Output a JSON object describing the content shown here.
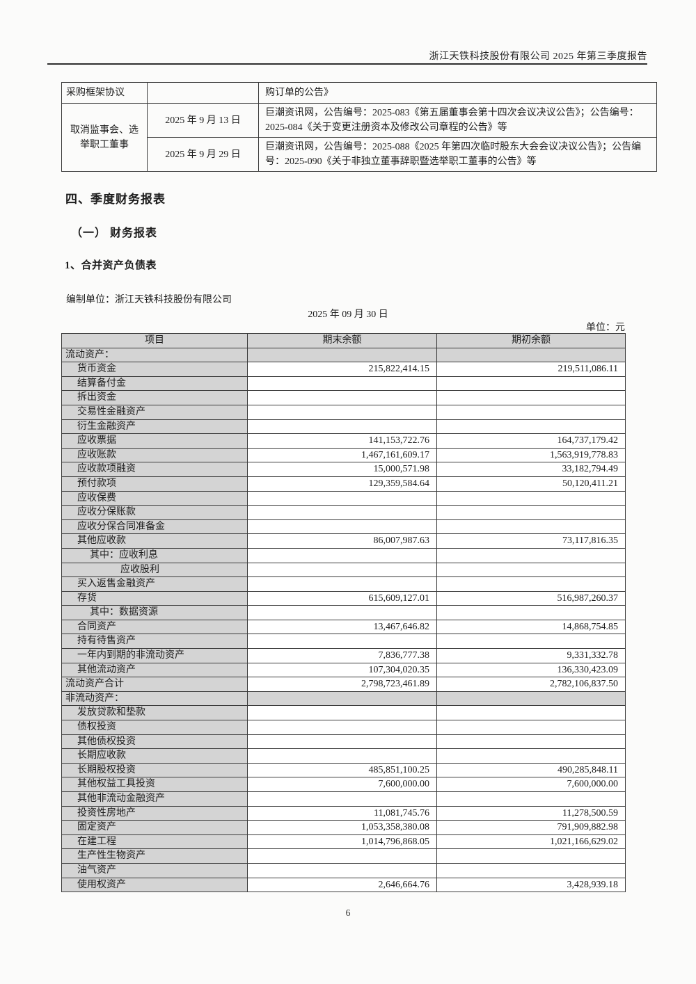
{
  "page": {
    "header_title": "浙江天铁科技股份有限公司 2025 年第三季度报告",
    "footer_page_number": "6"
  },
  "announcements_table": {
    "row_continued": {
      "col1": "采购框架协议",
      "col2": "",
      "col3": "购订单的公告》"
    },
    "merged_label": "取消监事会、选举职工董事",
    "entries": [
      {
        "date": "2025 年 9 月 13 日",
        "detail": "巨潮资讯网，公告编号：2025-083《第五届董事会第十四次会议决议公告》；公告编号：2025-084《关于变更注册资本及修改公司章程的公告》等"
      },
      {
        "date": "2025 年 9 月 29 日",
        "detail": "巨潮资讯网，公告编号：2025-088《2025 年第四次临时股东大会会议决议公告》；公告编号：2025-090《关于非独立董事辞职暨选举职工董事的公告》等"
      }
    ]
  },
  "sections": {
    "h1": "四、季度财务报表",
    "h2": "（一） 财务报表",
    "h3": "1、合并资产负债表",
    "prepared_by": "编制单位：浙江天铁科技股份有限公司",
    "report_date": "2025 年 09 月 30 日",
    "unit_label": "单位：元"
  },
  "balance_sheet": {
    "headers": [
      "项目",
      "期末余额",
      "期初余额"
    ],
    "colors": {
      "shaded_cell": "#d4d4d4",
      "border": "#3a3a3a"
    },
    "rows": [
      {
        "item": "流动资产：",
        "end": "",
        "begin": "",
        "type": "section",
        "indent": 0
      },
      {
        "item": "货币资金",
        "end": "215,822,414.15",
        "begin": "219,511,086.11",
        "type": "item",
        "indent": 1
      },
      {
        "item": "结算备付金",
        "end": "",
        "begin": "",
        "type": "item",
        "indent": 1
      },
      {
        "item": "拆出资金",
        "end": "",
        "begin": "",
        "type": "item",
        "indent": 1
      },
      {
        "item": "交易性金融资产",
        "end": "",
        "begin": "",
        "type": "item",
        "indent": 1
      },
      {
        "item": "衍生金融资产",
        "end": "",
        "begin": "",
        "type": "item",
        "indent": 1
      },
      {
        "item": "应收票据",
        "end": "141,153,722.76",
        "begin": "164,737,179.42",
        "type": "item",
        "indent": 1
      },
      {
        "item": "应收账款",
        "end": "1,467,161,609.17",
        "begin": "1,563,919,778.83",
        "type": "item",
        "indent": 1
      },
      {
        "item": "应收款项融资",
        "end": "15,000,571.98",
        "begin": "33,182,794.49",
        "type": "item",
        "indent": 1
      },
      {
        "item": "预付款项",
        "end": "129,359,584.64",
        "begin": "50,120,411.21",
        "type": "item",
        "indent": 1
      },
      {
        "item": "应收保费",
        "end": "",
        "begin": "",
        "type": "item",
        "indent": 1
      },
      {
        "item": "应收分保账款",
        "end": "",
        "begin": "",
        "type": "item",
        "indent": 1
      },
      {
        "item": "应收分保合同准备金",
        "end": "",
        "begin": "",
        "type": "item",
        "indent": 1
      },
      {
        "item": "其他应收款",
        "end": "86,007,987.63",
        "begin": "73,117,816.35",
        "type": "item",
        "indent": 1
      },
      {
        "item": "其中：应收利息",
        "end": "",
        "begin": "",
        "type": "item",
        "indent": 2
      },
      {
        "item": "应收股利",
        "end": "",
        "begin": "",
        "type": "item",
        "indent": 3
      },
      {
        "item": "买入返售金融资产",
        "end": "",
        "begin": "",
        "type": "item",
        "indent": 1
      },
      {
        "item": "存货",
        "end": "615,609,127.01",
        "begin": "516,987,260.37",
        "type": "item",
        "indent": 1
      },
      {
        "item": "其中：数据资源",
        "end": "",
        "begin": "",
        "type": "item",
        "indent": 2
      },
      {
        "item": "合同资产",
        "end": "13,467,646.82",
        "begin": "14,868,754.85",
        "type": "item",
        "indent": 1
      },
      {
        "item": "持有待售资产",
        "end": "",
        "begin": "",
        "type": "item",
        "indent": 1
      },
      {
        "item": "一年内到期的非流动资产",
        "end": "7,836,777.38",
        "begin": "9,331,332.78",
        "type": "item",
        "indent": 1
      },
      {
        "item": "其他流动资产",
        "end": "107,304,020.35",
        "begin": "136,330,423.09",
        "type": "item",
        "indent": 1
      },
      {
        "item": "流动资产合计",
        "end": "2,798,723,461.89",
        "begin": "2,782,106,837.50",
        "type": "total",
        "indent": 0
      },
      {
        "item": "非流动资产：",
        "end": "",
        "begin": "",
        "type": "section",
        "indent": 0
      },
      {
        "item": "发放贷款和垫款",
        "end": "",
        "begin": "",
        "type": "item",
        "indent": 1
      },
      {
        "item": "债权投资",
        "end": "",
        "begin": "",
        "type": "item",
        "indent": 1
      },
      {
        "item": "其他债权投资",
        "end": "",
        "begin": "",
        "type": "item",
        "indent": 1
      },
      {
        "item": "长期应收款",
        "end": "",
        "begin": "",
        "type": "item",
        "indent": 1
      },
      {
        "item": "长期股权投资",
        "end": "485,851,100.25",
        "begin": "490,285,848.11",
        "type": "item",
        "indent": 1
      },
      {
        "item": "其他权益工具投资",
        "end": "7,600,000.00",
        "begin": "7,600,000.00",
        "type": "item",
        "indent": 1
      },
      {
        "item": "其他非流动金融资产",
        "end": "",
        "begin": "",
        "type": "item",
        "indent": 1
      },
      {
        "item": "投资性房地产",
        "end": "11,081,745.76",
        "begin": "11,278,500.59",
        "type": "item",
        "indent": 1
      },
      {
        "item": "固定资产",
        "end": "1,053,358,380.08",
        "begin": "791,909,882.98",
        "type": "item",
        "indent": 1
      },
      {
        "item": "在建工程",
        "end": "1,014,796,868.05",
        "begin": "1,021,166,629.02",
        "type": "item",
        "indent": 1
      },
      {
        "item": "生产性生物资产",
        "end": "",
        "begin": "",
        "type": "item",
        "indent": 1
      },
      {
        "item": "油气资产",
        "end": "",
        "begin": "",
        "type": "item",
        "indent": 1
      },
      {
        "item": "使用权资产",
        "end": "2,646,664.76",
        "begin": "3,428,939.18",
        "type": "item",
        "indent": 1
      }
    ]
  }
}
